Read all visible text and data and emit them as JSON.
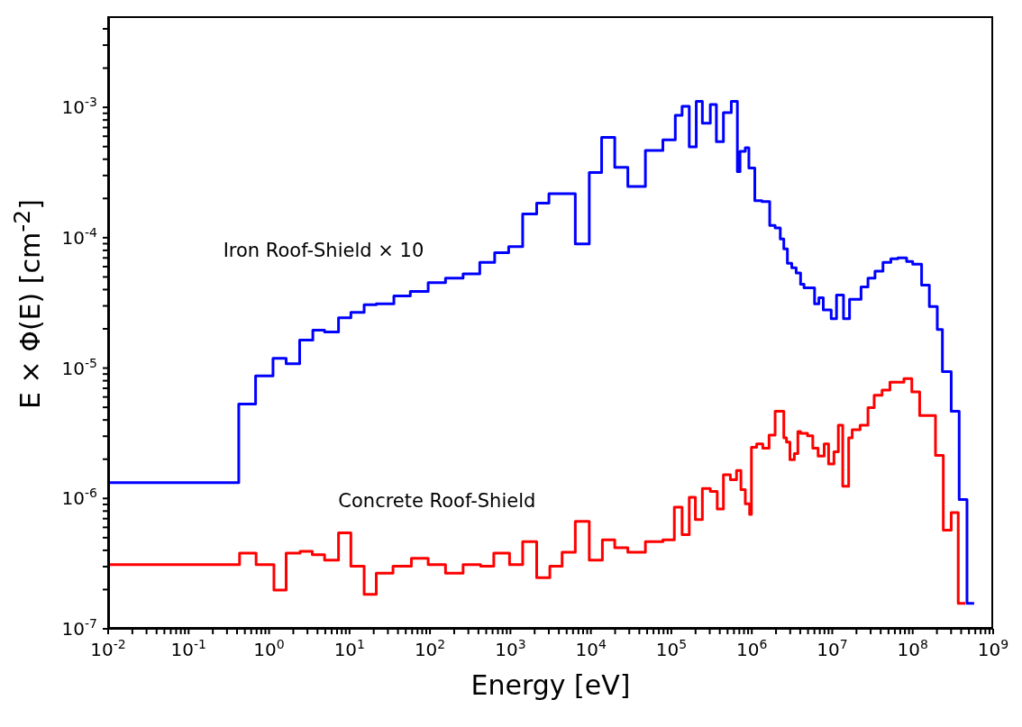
{
  "chart_data": {
    "type": "step",
    "xlabel": "Energy [eV]",
    "ylabel": "E × Φ(E) [cm$^{-2}$]",
    "log": "xy",
    "marker": "none",
    "line_style": "solid",
    "xlim": [
      0.01,
      1000000000
    ],
    "ylim": [
      1e-07,
      0.005
    ],
    "xticks": [
      {
        "value": 0.01,
        "label": "10$^{-2}$"
      },
      {
        "value": 0.1,
        "label": "10$^{-1}$"
      },
      {
        "value": 1,
        "label": "10$^{0}$"
      },
      {
        "value": 10,
        "label": "10$^{1}$"
      },
      {
        "value": 100,
        "label": "10$^{2}$"
      },
      {
        "value": 1000,
        "label": "10$^{3}$"
      },
      {
        "value": 10000,
        "label": "10$^{4}$"
      },
      {
        "value": 100000,
        "label": "10$^{5}$"
      },
      {
        "value": 1000000,
        "label": "10$^{6}$"
      },
      {
        "value": 10000000,
        "label": "10$^{7}$"
      },
      {
        "value": 100000000,
        "label": "10$^{8}$"
      },
      {
        "value": 1000000000,
        "label": "10$^{9}$"
      },
      {
        "value": 0.02,
        "label": null
      },
      {
        "value": 0.03,
        "label": null
      },
      {
        "value": 0.04,
        "label": null
      },
      {
        "value": 0.05,
        "label": null
      },
      {
        "value": 0.06,
        "label": null
      },
      {
        "value": 0.07,
        "label": null
      },
      {
        "value": 0.08,
        "label": null
      },
      {
        "value": 0.09,
        "label": null
      },
      {
        "value": 0.2,
        "label": null
      },
      {
        "value": 0.3,
        "label": null
      },
      {
        "value": 0.4,
        "label": null
      },
      {
        "value": 0.5,
        "label": null
      },
      {
        "value": 0.6,
        "label": null
      },
      {
        "value": 0.7,
        "label": null
      },
      {
        "value": 0.8,
        "label": null
      },
      {
        "value": 0.9,
        "label": null
      },
      {
        "value": 2,
        "label": null
      },
      {
        "value": 3,
        "label": null
      },
      {
        "value": 4,
        "label": null
      },
      {
        "value": 5,
        "label": null
      },
      {
        "value": 6,
        "label": null
      },
      {
        "value": 7,
        "label": null
      },
      {
        "value": 8,
        "label": null
      },
      {
        "value": 9,
        "label": null
      },
      {
        "value": 20,
        "label": null
      },
      {
        "value": 30,
        "label": null
      },
      {
        "value": 40,
        "label": null
      },
      {
        "value": 50,
        "label": null
      },
      {
        "value": 60,
        "label": null
      },
      {
        "value": 70,
        "label": null
      },
      {
        "value": 80,
        "label": null
      },
      {
        "value": 90,
        "label": null
      },
      {
        "value": 200,
        "label": null
      },
      {
        "value": 300,
        "label": null
      },
      {
        "value": 400,
        "label": null
      },
      {
        "value": 500,
        "label": null
      },
      {
        "value": 600,
        "label": null
      },
      {
        "value": 700,
        "label": null
      },
      {
        "value": 800,
        "label": null
      },
      {
        "value": 900,
        "label": null
      },
      {
        "value": 2000,
        "label": null
      },
      {
        "value": 3000,
        "label": null
      },
      {
        "value": 4000,
        "label": null
      },
      {
        "value": 5000,
        "label": null
      },
      {
        "value": 6000,
        "label": null
      },
      {
        "value": 7000,
        "label": null
      },
      {
        "value": 8000,
        "label": null
      },
      {
        "value": 9000,
        "label": null
      },
      {
        "value": 20000,
        "label": null
      },
      {
        "value": 30000,
        "label": null
      },
      {
        "value": 40000,
        "label": null
      },
      {
        "value": 50000,
        "label": null
      },
      {
        "value": 60000,
        "label": null
      },
      {
        "value": 70000,
        "label": null
      },
      {
        "value": 80000,
        "label": null
      },
      {
        "value": 90000,
        "label": null
      },
      {
        "value": 200000,
        "label": null
      },
      {
        "value": 300000,
        "label": null
      },
      {
        "value": 400000,
        "label": null
      },
      {
        "value": 500000,
        "label": null
      },
      {
        "value": 600000,
        "label": null
      },
      {
        "value": 700000,
        "label": null
      },
      {
        "value": 800000,
        "label": null
      },
      {
        "value": 900000,
        "label": null
      },
      {
        "value": 2000000,
        "label": null
      },
      {
        "value": 3000000,
        "label": null
      },
      {
        "value": 4000000,
        "label": null
      },
      {
        "value": 5000000,
        "label": null
      },
      {
        "value": 6000000,
        "label": null
      },
      {
        "value": 7000000,
        "label": null
      },
      {
        "value": 8000000,
        "label": null
      },
      {
        "value": 9000000,
        "label": null
      },
      {
        "value": 20000000,
        "label": null
      },
      {
        "value": 30000000,
        "label": null
      },
      {
        "value": 40000000,
        "label": null
      },
      {
        "value": 50000000,
        "label": null
      },
      {
        "value": 60000000,
        "label": null
      },
      {
        "value": 70000000,
        "label": null
      },
      {
        "value": 80000000,
        "label": null
      },
      {
        "value": 90000000,
        "label": null
      },
      {
        "value": 200000000,
        "label": null
      },
      {
        "value": 300000000,
        "label": null
      },
      {
        "value": 400000000,
        "label": null
      },
      {
        "value": 500000000,
        "label": null
      },
      {
        "value": 600000000,
        "label": null
      },
      {
        "value": 700000000,
        "label": null
      },
      {
        "value": 800000000,
        "label": null
      },
      {
        "value": 900000000,
        "label": null
      }
    ],
    "yticks": [
      {
        "value": 1e-07,
        "label": "10$^{-7}$"
      },
      {
        "value": 1e-06,
        "label": "10$^{-6}$"
      },
      {
        "value": 1e-05,
        "label": "10$^{-5}$"
      },
      {
        "value": 0.0001,
        "label": "10$^{-4}$"
      },
      {
        "value": 0.001,
        "label": "10$^{-3}$"
      },
      {
        "value": 2e-07,
        "label": null
      },
      {
        "value": 3e-07,
        "label": null
      },
      {
        "value": 4e-07,
        "label": null
      },
      {
        "value": 5e-07,
        "label": null
      },
      {
        "value": 6e-07,
        "label": null
      },
      {
        "value": 7e-07,
        "label": null
      },
      {
        "value": 8e-07,
        "label": null
      },
      {
        "value": 9e-07,
        "label": null
      },
      {
        "value": 2e-06,
        "label": null
      },
      {
        "value": 3e-06,
        "label": null
      },
      {
        "value": 4e-06,
        "label": null
      },
      {
        "value": 5e-06,
        "label": null
      },
      {
        "value": 6e-06,
        "label": null
      },
      {
        "value": 7e-06,
        "label": null
      },
      {
        "value": 8e-06,
        "label": null
      },
      {
        "value": 9e-06,
        "label": null
      },
      {
        "value": 2e-05,
        "label": null
      },
      {
        "value": 3e-05,
        "label": null
      },
      {
        "value": 4e-05,
        "label": null
      },
      {
        "value": 5e-05,
        "label": null
      },
      {
        "value": 6e-05,
        "label": null
      },
      {
        "value": 7e-05,
        "label": null
      },
      {
        "value": 8e-05,
        "label": null
      },
      {
        "value": 9e-05,
        "label": null
      },
      {
        "value": 0.0002,
        "label": null
      },
      {
        "value": 0.0003,
        "label": null
      },
      {
        "value": 0.0004,
        "label": null
      },
      {
        "value": 0.0005,
        "label": null
      },
      {
        "value": 0.0006,
        "label": null
      },
      {
        "value": 0.0007,
        "label": null
      },
      {
        "value": 0.0008,
        "label": null
      },
      {
        "value": 0.0009,
        "label": null
      },
      {
        "value": 0.002,
        "label": null
      },
      {
        "value": 0.003,
        "label": null
      },
      {
        "value": 0.004,
        "label": null
      }
    ],
    "series": [
      {
        "name": "Iron Roof-Shield × 10",
        "color": "#0000ff",
        "x": [
          0.01,
          0.42,
          0.68,
          1.12,
          1.63,
          2.4,
          3.5,
          4.9,
          7.3,
          10.4,
          15.2,
          21.5,
          35.6,
          57,
          95,
          156,
          258,
          416,
          637,
          951,
          1420,
          2120,
          3010,
          6400,
          9550,
          13600,
          19800,
          28800,
          47600,
          78500,
          112000,
          136000,
          167000,
          204000,
          243000,
          305000,
          363000,
          444000,
          556000,
          662000,
          714000,
          830000,
          920000,
          1090000,
          1340000,
          1670000,
          1950000,
          2260000,
          2500000,
          2770000,
          3140000,
          3560000,
          4040000,
          4460000,
          6030000,
          6820000,
          7740000,
          9700000,
          11300000,
          13800000,
          16400000,
          22800000,
          27800000,
          34000000,
          42700000,
          53500000,
          65300000,
          84000000,
          100000000,
          129000000,
          161000000,
          202000000,
          234000000,
          301000000,
          378000000,
          473000000,
          580000000
        ],
        "values": [
          1.32e-06,
          5.3e-06,
          8.7e-06,
          1.19e-05,
          1.08e-05,
          1.64e-05,
          1.95e-05,
          1.89e-05,
          2.43e-05,
          2.67e-05,
          3.06e-05,
          3.11e-05,
          3.58e-05,
          3.87e-05,
          4.52e-05,
          4.89e-05,
          5.28e-05,
          6.47e-05,
          7.67e-05,
          8.56e-05,
          0.000152,
          0.000184,
          0.000218,
          8.97e-05,
          0.000316,
          0.000589,
          0.000347,
          0.000247,
          0.000467,
          0.000562,
          0.00087,
          0.00102,
          0.000497,
          0.00111,
          0.000755,
          0.00105,
          0.000545,
          0.00091,
          0.00111,
          0.000321,
          0.000459,
          0.000489,
          0.000342,
          0.000192,
          0.000189,
          0.000124,
          0.000119,
          9.8e-05,
          8.2e-05,
          6.37e-05,
          5.89e-05,
          5.37e-05,
          4.39e-05,
          4.12e-05,
          3.11e-05,
          3.47e-05,
          2.79e-05,
          2.39e-05,
          3.64e-05,
          2.39e-05,
          3.37e-05,
          4.19e-05,
          4.89e-05,
          5.54e-05,
          6.47e-05,
          6.89e-05,
          7e-05,
          6.57e-05,
          6.27e-05,
          4.32e-05,
          2.97e-05,
          1.98e-05,
          9.4e-06,
          4.67e-06,
          9.8e-07,
          1.57e-07,
          1.57e-07
        ]
      },
      {
        "name": "Concrete Roof-Shield",
        "color": "#ff0000",
        "x": [
          0.01,
          0.43,
          0.69,
          1.15,
          1.63,
          2.43,
          3.45,
          4.9,
          7.3,
          10.4,
          15.2,
          21.5,
          34.7,
          58.7,
          95,
          156,
          258,
          427,
          621,
          975,
          1420,
          2120,
          3090,
          4390,
          6400,
          9550,
          13900,
          19800,
          28800,
          47600,
          78500,
          109000,
          136000,
          167000,
          199000,
          243000,
          305000,
          372000,
          444000,
          542000,
          646000,
          733000,
          830000,
          940000,
          990000,
          1150000,
          1370000,
          1640000,
          1950000,
          2500000,
          2700000,
          2980000,
          3380000,
          3740000,
          4040000,
          4930000,
          5730000,
          6670000,
          7940000,
          9000000,
          10500000,
          11900000,
          13500000,
          16000000,
          17700000,
          22200000,
          27800000,
          33200000,
          41600000,
          52100000,
          77800000,
          97500000,
          122000000,
          192000000,
          240000000,
          301000000,
          368000000,
          451000000
        ],
        "values": [
          3.11e-07,
          3.81e-07,
          3.11e-07,
          1.98e-07,
          3.81e-07,
          3.93e-07,
          3.7e-07,
          3.37e-07,
          5.45e-07,
          3.02e-07,
          1.84e-07,
          2.67e-07,
          3.02e-07,
          3.47e-07,
          3.11e-07,
          2.67e-07,
          3.11e-07,
          3.02e-07,
          3.81e-07,
          3.11e-07,
          4.67e-07,
          2.47e-07,
          3.02e-07,
          3.87e-07,
          6.67e-07,
          3.37e-07,
          4.81e-07,
          4.19e-07,
          3.87e-07,
          4.67e-07,
          4.81e-07,
          8.56e-07,
          5.28e-07,
          1.02e-06,
          6.89e-07,
          1.19e-06,
          1.13e-06,
          8.3e-07,
          1.52e-06,
          1.39e-06,
          1.64e-06,
          1.17e-06,
          9.1e-07,
          7.55e-07,
          2.47e-06,
          2.62e-06,
          2.43e-06,
          3.06e-06,
          4.67e-06,
          2.92e-06,
          2.71e-06,
          1.98e-06,
          2.21e-06,
          3.26e-06,
          3.16e-06,
          3.02e-06,
          2.43e-06,
          2.11e-06,
          2.62e-06,
          1.84e-06,
          2.28e-06,
          3.64e-06,
          1.24e-06,
          2.92e-06,
          3.37e-06,
          3.64e-06,
          4.97e-06,
          6.18e-06,
          6.78e-06,
          7.8e-06,
          8.3e-06,
          6.57e-06,
          4.32e-06,
          2.14e-06,
          5.71e-07,
          7.8e-07,
          1.57e-07,
          1.57e-07
        ]
      }
    ]
  }
}
